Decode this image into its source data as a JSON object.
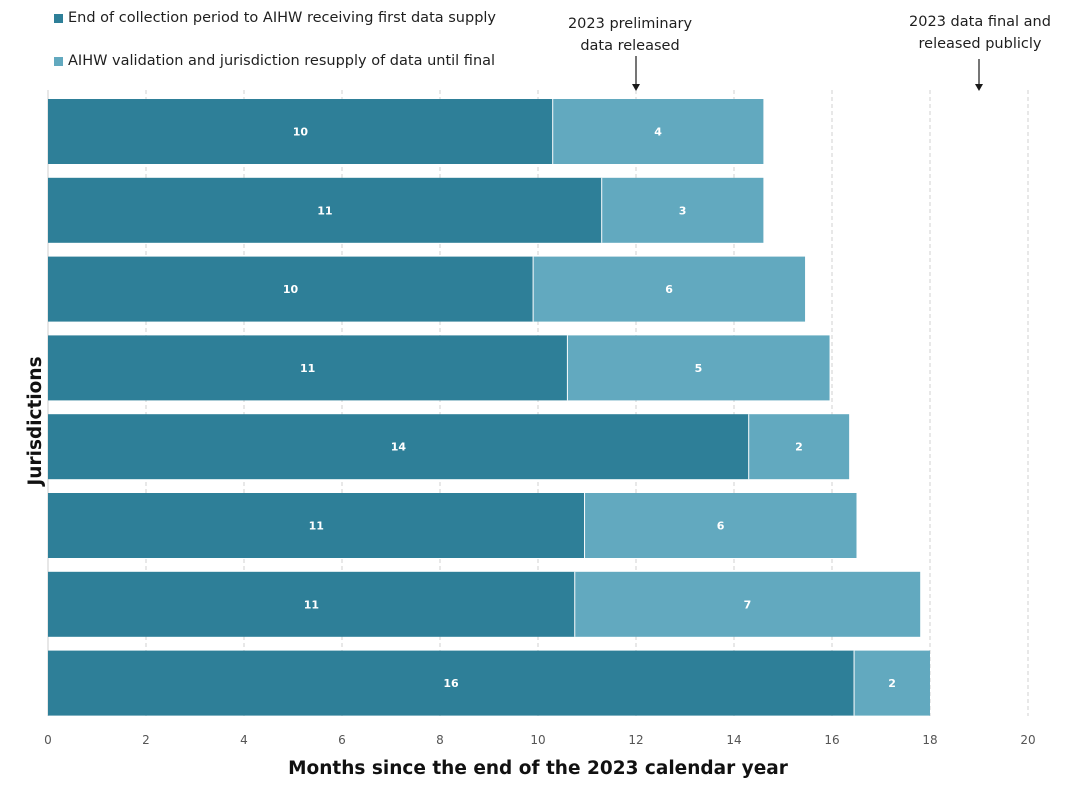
{
  "chart_data": {
    "type": "bar",
    "orientation": "horizontal",
    "stacked": true,
    "xlabel": "Months since the end of the 2023 calendar year",
    "ylabel": "Jurisdictions",
    "xlim": [
      0,
      20
    ],
    "xticks": [
      0,
      2,
      4,
      6,
      8,
      10,
      12,
      14,
      16,
      18,
      20
    ],
    "grid": "vertical dashed",
    "legend_position": "top-left",
    "series": [
      {
        "name": "End of collection period to AIHW receiving first data supply",
        "color": "#2e7f98",
        "values": [
          10.3,
          11.3,
          9.9,
          10.6,
          14.3,
          10.95,
          10.75,
          16.45
        ],
        "labels": [
          "10",
          "11",
          "10",
          "11",
          "14",
          "11",
          "11",
          "16"
        ]
      },
      {
        "name": "AIHW validation and jurisdiction resupply of data until final",
        "color": "#62a9bf",
        "values": [
          4.3,
          3.3,
          5.55,
          5.35,
          2.05,
          5.55,
          7.05,
          1.55
        ],
        "labels": [
          "4",
          "3",
          "6",
          "5",
          "2",
          "6",
          "7",
          "2"
        ]
      }
    ],
    "annotations": [
      {
        "text_line1": "2023 preliminary",
        "text_line2": "data released",
        "x": 12
      },
      {
        "text_line1": "2023 data final and",
        "text_line2": "released publicly",
        "x": 19
      }
    ]
  }
}
